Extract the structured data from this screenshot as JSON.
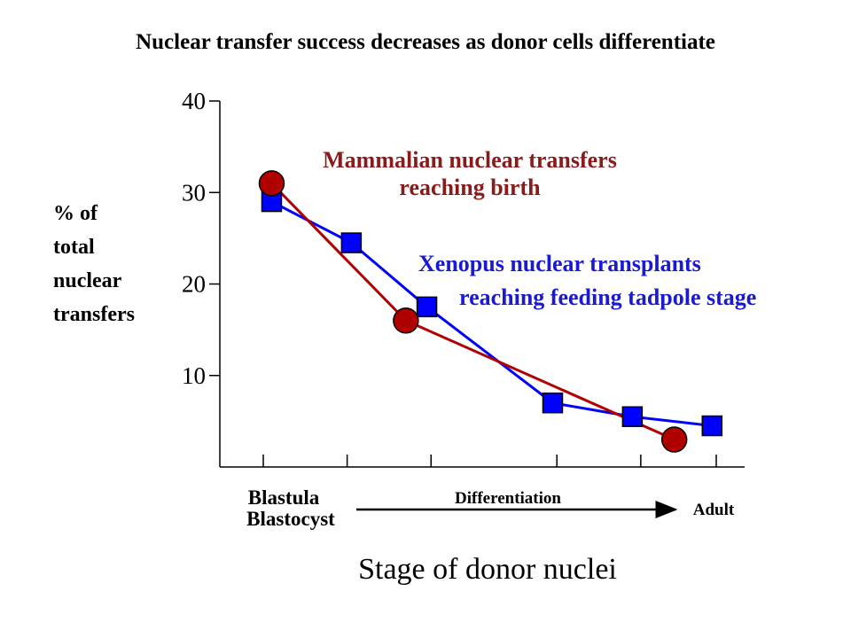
{
  "title": "Nuclear transfer success decreases as donor cells differentiate",
  "y_axis_label_lines": [
    "% of",
    "total",
    "nuclear",
    "transfers"
  ],
  "x_axis_label": "Stage of donor nuclei",
  "stage_labels": {
    "start_line1": "Blastula",
    "start_line2": "Blastocyst",
    "middle": "Differentiation",
    "end": "Adult"
  },
  "colors": {
    "mammalian": "#b00000",
    "mammalian_text": "#8b1a1a",
    "xenopus": "#0000ff",
    "xenopus_text": "#1a1ad0"
  },
  "chart_data": {
    "type": "line",
    "title": "Nuclear transfer success decreases as donor cells differentiate",
    "xlabel": "Stage of donor nuclei",
    "ylabel": "% of total nuclear transfers",
    "ylim": [
      0,
      40
    ],
    "xlim": [
      0,
      6
    ],
    "yticks": [
      10,
      20,
      30,
      40
    ],
    "xticks": [
      0,
      1,
      2,
      3.5,
      4.5,
      5.4
    ],
    "grid": false,
    "series": [
      {
        "name": "Mammalian nuclear transfers reaching birth",
        "label_lines": [
          "Mammalian nuclear transfers",
          "reaching birth"
        ],
        "marker": "circle",
        "x": [
          0.1,
          1.7,
          4.9
        ],
        "y": [
          31,
          16,
          3
        ]
      },
      {
        "name": "Xenopus nuclear transplants reaching feeding tadpole stage",
        "label_lines": [
          "Xenopus nuclear transplants",
          "reaching feeding tadpole stage"
        ],
        "marker": "square",
        "x": [
          0.1,
          1.05,
          1.95,
          3.45,
          4.4,
          5.35
        ],
        "y": [
          29,
          24.5,
          17.5,
          7,
          5.5,
          4.5
        ]
      }
    ]
  }
}
